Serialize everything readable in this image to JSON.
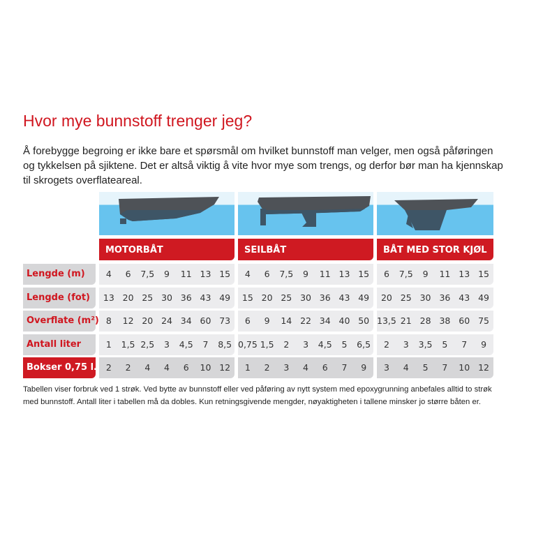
{
  "title": "Hvor mye bunnstoff trenger jeg?",
  "intro": "Å forebygge begroing er ikke bare et spørsmål om hvilket bunnstoff man velger, men også påføringen og tykkelsen på sjiktene. Det er altså viktig å vite hvor mye som trengs, og derfor bør man ha kjennskap til skrogets overflateareal.",
  "colors": {
    "accent": "#cf1a22",
    "water": "#67c3ee",
    "hull": "#5a5e63"
  },
  "groups": [
    {
      "name": "MOTORBÅT",
      "icon": "motorboat-icon",
      "rows": [
        [
          "4",
          "6",
          "7,5",
          "9",
          "11",
          "13",
          "15"
        ],
        [
          "13",
          "20",
          "25",
          "30",
          "36",
          "43",
          "49"
        ],
        [
          "8",
          "12",
          "20",
          "24",
          "34",
          "60",
          "73"
        ],
        [
          "1",
          "1,5",
          "2,5",
          "3",
          "4,5",
          "7",
          "8,5"
        ],
        [
          "2",
          "2",
          "4",
          "4",
          "6",
          "10",
          "12"
        ]
      ]
    },
    {
      "name": "SEILBÅT",
      "icon": "sailboat-icon",
      "rows": [
        [
          "4",
          "6",
          "7,5",
          "9",
          "11",
          "13",
          "15"
        ],
        [
          "15",
          "20",
          "25",
          "30",
          "36",
          "43",
          "49"
        ],
        [
          "6",
          "9",
          "14",
          "22",
          "34",
          "40",
          "50"
        ],
        [
          "0,75",
          "1,5",
          "2",
          "3",
          "4,5",
          "5",
          "6,5"
        ],
        [
          "1",
          "2",
          "3",
          "4",
          "6",
          "7",
          "9"
        ]
      ]
    },
    {
      "name": "BÅT MED STOR KJØL",
      "icon": "long-keel-boat-icon",
      "rows": [
        [
          "6",
          "7,5",
          "9",
          "11",
          "13",
          "15"
        ],
        [
          "20",
          "25",
          "30",
          "36",
          "43",
          "49"
        ],
        [
          "13,5",
          "21",
          "28",
          "38",
          "60",
          "75"
        ],
        [
          "2",
          "3",
          "3,5",
          "5",
          "7",
          "9"
        ],
        [
          "3",
          "4",
          "5",
          "7",
          "10",
          "12"
        ]
      ]
    }
  ],
  "row_labels": [
    "Lengde (m)",
    "Lengde (fot)",
    "Overflate (m²)",
    "Antall liter",
    "Bokser 0,75 l."
  ],
  "footnote": "Tabellen viser forbruk ved 1 strøk. Ved bytte av bunnstoff eller ved påføring av nytt system med epoxygrunning anbefales alltid to strøk med bunnstoff. Antall liter i tabellen må da dobles. Kun retningsgivende mengder, nøyaktigheten i tallene minsker jo større båten er."
}
